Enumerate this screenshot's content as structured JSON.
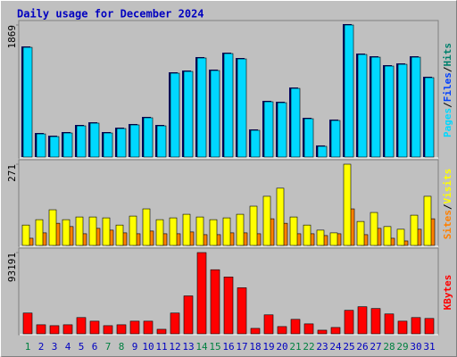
{
  "title": "Daily usage for December 2024",
  "chart_data": [
    {
      "type": "bar",
      "series": [
        {
          "name": "Pages",
          "color": "#00d8ff",
          "values": [
            1553,
            328,
            290,
            341,
            442,
            480,
            341,
            404,
            455,
            556,
            442,
            1187,
            1212,
            1402,
            1225,
            1465,
            1389,
            379,
            783,
            770,
            972,
            543,
            152,
            518,
            1869,
            1452,
            1414,
            1288,
            1313,
            1414,
            1124
          ]
        }
      ],
      "other_labels": [
        {
          "label": "Files",
          "color": "#0040ff"
        },
        {
          "label": "Hits",
          "color": "#00806c"
        }
      ],
      "separator": "/",
      "ylim": [
        0,
        1869
      ],
      "yticks": [
        1869
      ]
    },
    {
      "type": "bar",
      "series": [
        {
          "name": "Sites",
          "color": "#ff8000",
          "values": [
            24,
            42,
            74,
            63,
            39,
            57,
            51,
            42,
            39,
            48,
            39,
            39,
            45,
            36,
            36,
            42,
            42,
            39,
            89,
            74,
            39,
            39,
            33,
            39,
            122,
            36,
            57,
            24,
            15,
            54,
            89
          ]
        },
        {
          "name": "Visits",
          "color": "#ffff00",
          "values": [
            68,
            86,
            119,
            86,
            95,
            95,
            92,
            68,
            98,
            122,
            86,
            92,
            104,
            95,
            86,
            92,
            104,
            131,
            164,
            191,
            95,
            68,
            51,
            42,
            271,
            80,
            110,
            63,
            54,
            101,
            164
          ]
        }
      ],
      "separator": "/",
      "ylim": [
        0,
        271
      ],
      "yticks": [
        271
      ]
    },
    {
      "type": "bar",
      "categories": [
        "1",
        "2",
        "3",
        "4",
        "5",
        "6",
        "7",
        "8",
        "9",
        "10",
        "11",
        "12",
        "13",
        "14",
        "15",
        "16",
        "17",
        "18",
        "19",
        "20",
        "21",
        "22",
        "23",
        "24",
        "25",
        "26",
        "27",
        "28",
        "29",
        "30",
        "31"
      ],
      "category_colors": [
        "#008040",
        "#0000c0",
        "#0000c0",
        "#0000c0",
        "#0000c0",
        "#0000c0",
        "#008040",
        "#008040",
        "#0000c0",
        "#0000c0",
        "#0000c0",
        "#0000c0",
        "#0000c0",
        "#008040",
        "#008040",
        "#0000c0",
        "#0000c0",
        "#0000c0",
        "#0000c0",
        "#0000c0",
        "#008040",
        "#008040",
        "#0000c0",
        "#0000c0",
        "#0000c0",
        "#0000c0",
        "#0000c0",
        "#008040",
        "#008040",
        "#0000c0",
        "#0000c0"
      ],
      "series": [
        {
          "name": "KBytes",
          "color": "#ff0000",
          "values": [
            23815,
            10354,
            9319,
            10354,
            18638,
            14496,
            9319,
            10354,
            14496,
            14496,
            5177,
            23815,
            43489,
            93191,
            73517,
            65234,
            52808,
            6213,
            21744,
            8284,
            16567,
            11390,
            4142,
            7248,
            26922,
            31064,
            28993,
            22780,
            14496,
            18638,
            17603
          ]
        }
      ],
      "ylim": [
        0,
        93191
      ],
      "yticks": [
        93191
      ]
    }
  ]
}
